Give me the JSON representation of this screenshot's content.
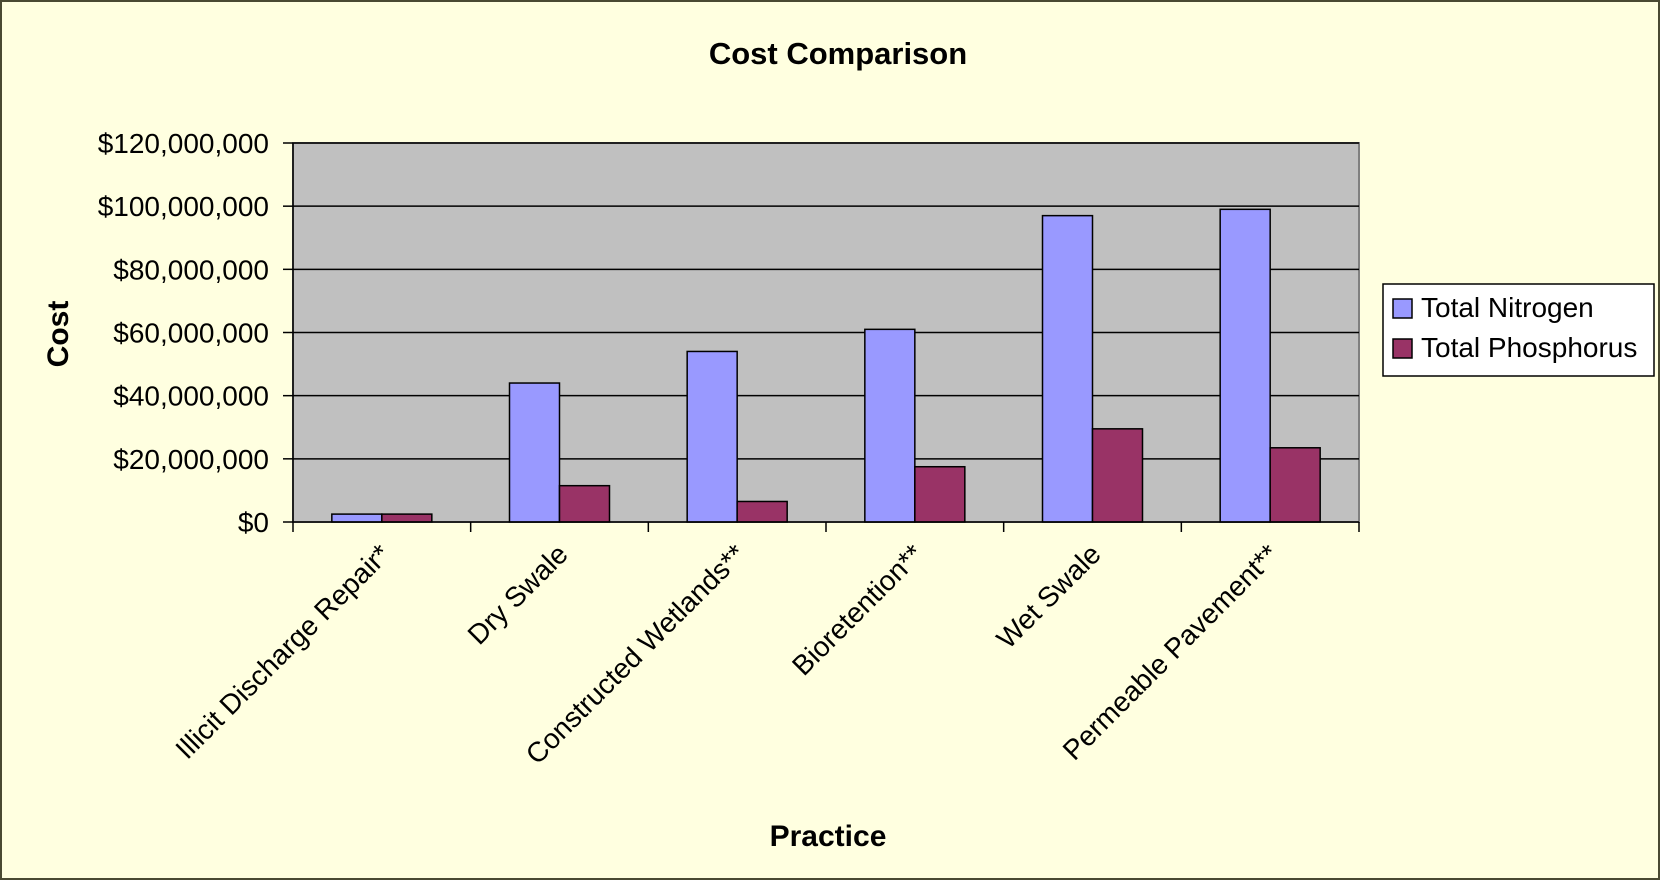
{
  "chart_data": {
    "type": "bar",
    "title": "Cost Comparison",
    "xlabel": "Practice",
    "ylabel": "Cost",
    "categories": [
      "Illicit Discharge Repair*",
      "Dry Swale",
      "Constructed Wetlands**",
      "Bioretention**",
      "Wet Swale",
      "Permeable Pavement**"
    ],
    "series": [
      {
        "name": "Total Nitrogen",
        "color": "#9999ff",
        "values": [
          2500000,
          44000000,
          54000000,
          61000000,
          97000000,
          99000000
        ]
      },
      {
        "name": "Total Phosphorus",
        "color": "#993366",
        "values": [
          2500000,
          11500000,
          6500000,
          17500000,
          29500000,
          23500000
        ]
      }
    ],
    "ylim": [
      0,
      120000000
    ],
    "yticks": [
      0,
      20000000,
      40000000,
      60000000,
      80000000,
      100000000,
      120000000
    ],
    "ytick_labels": [
      "$0",
      "$20,000,000",
      "$40,000,000",
      "$60,000,000",
      "$80,000,000",
      "$100,000,000",
      "$120,000,000"
    ],
    "grid": true,
    "legend_position": "right",
    "colors": {
      "plot_background": "#c0c0c0",
      "page_background": "#ffffe0",
      "gridline": "#000000"
    }
  }
}
